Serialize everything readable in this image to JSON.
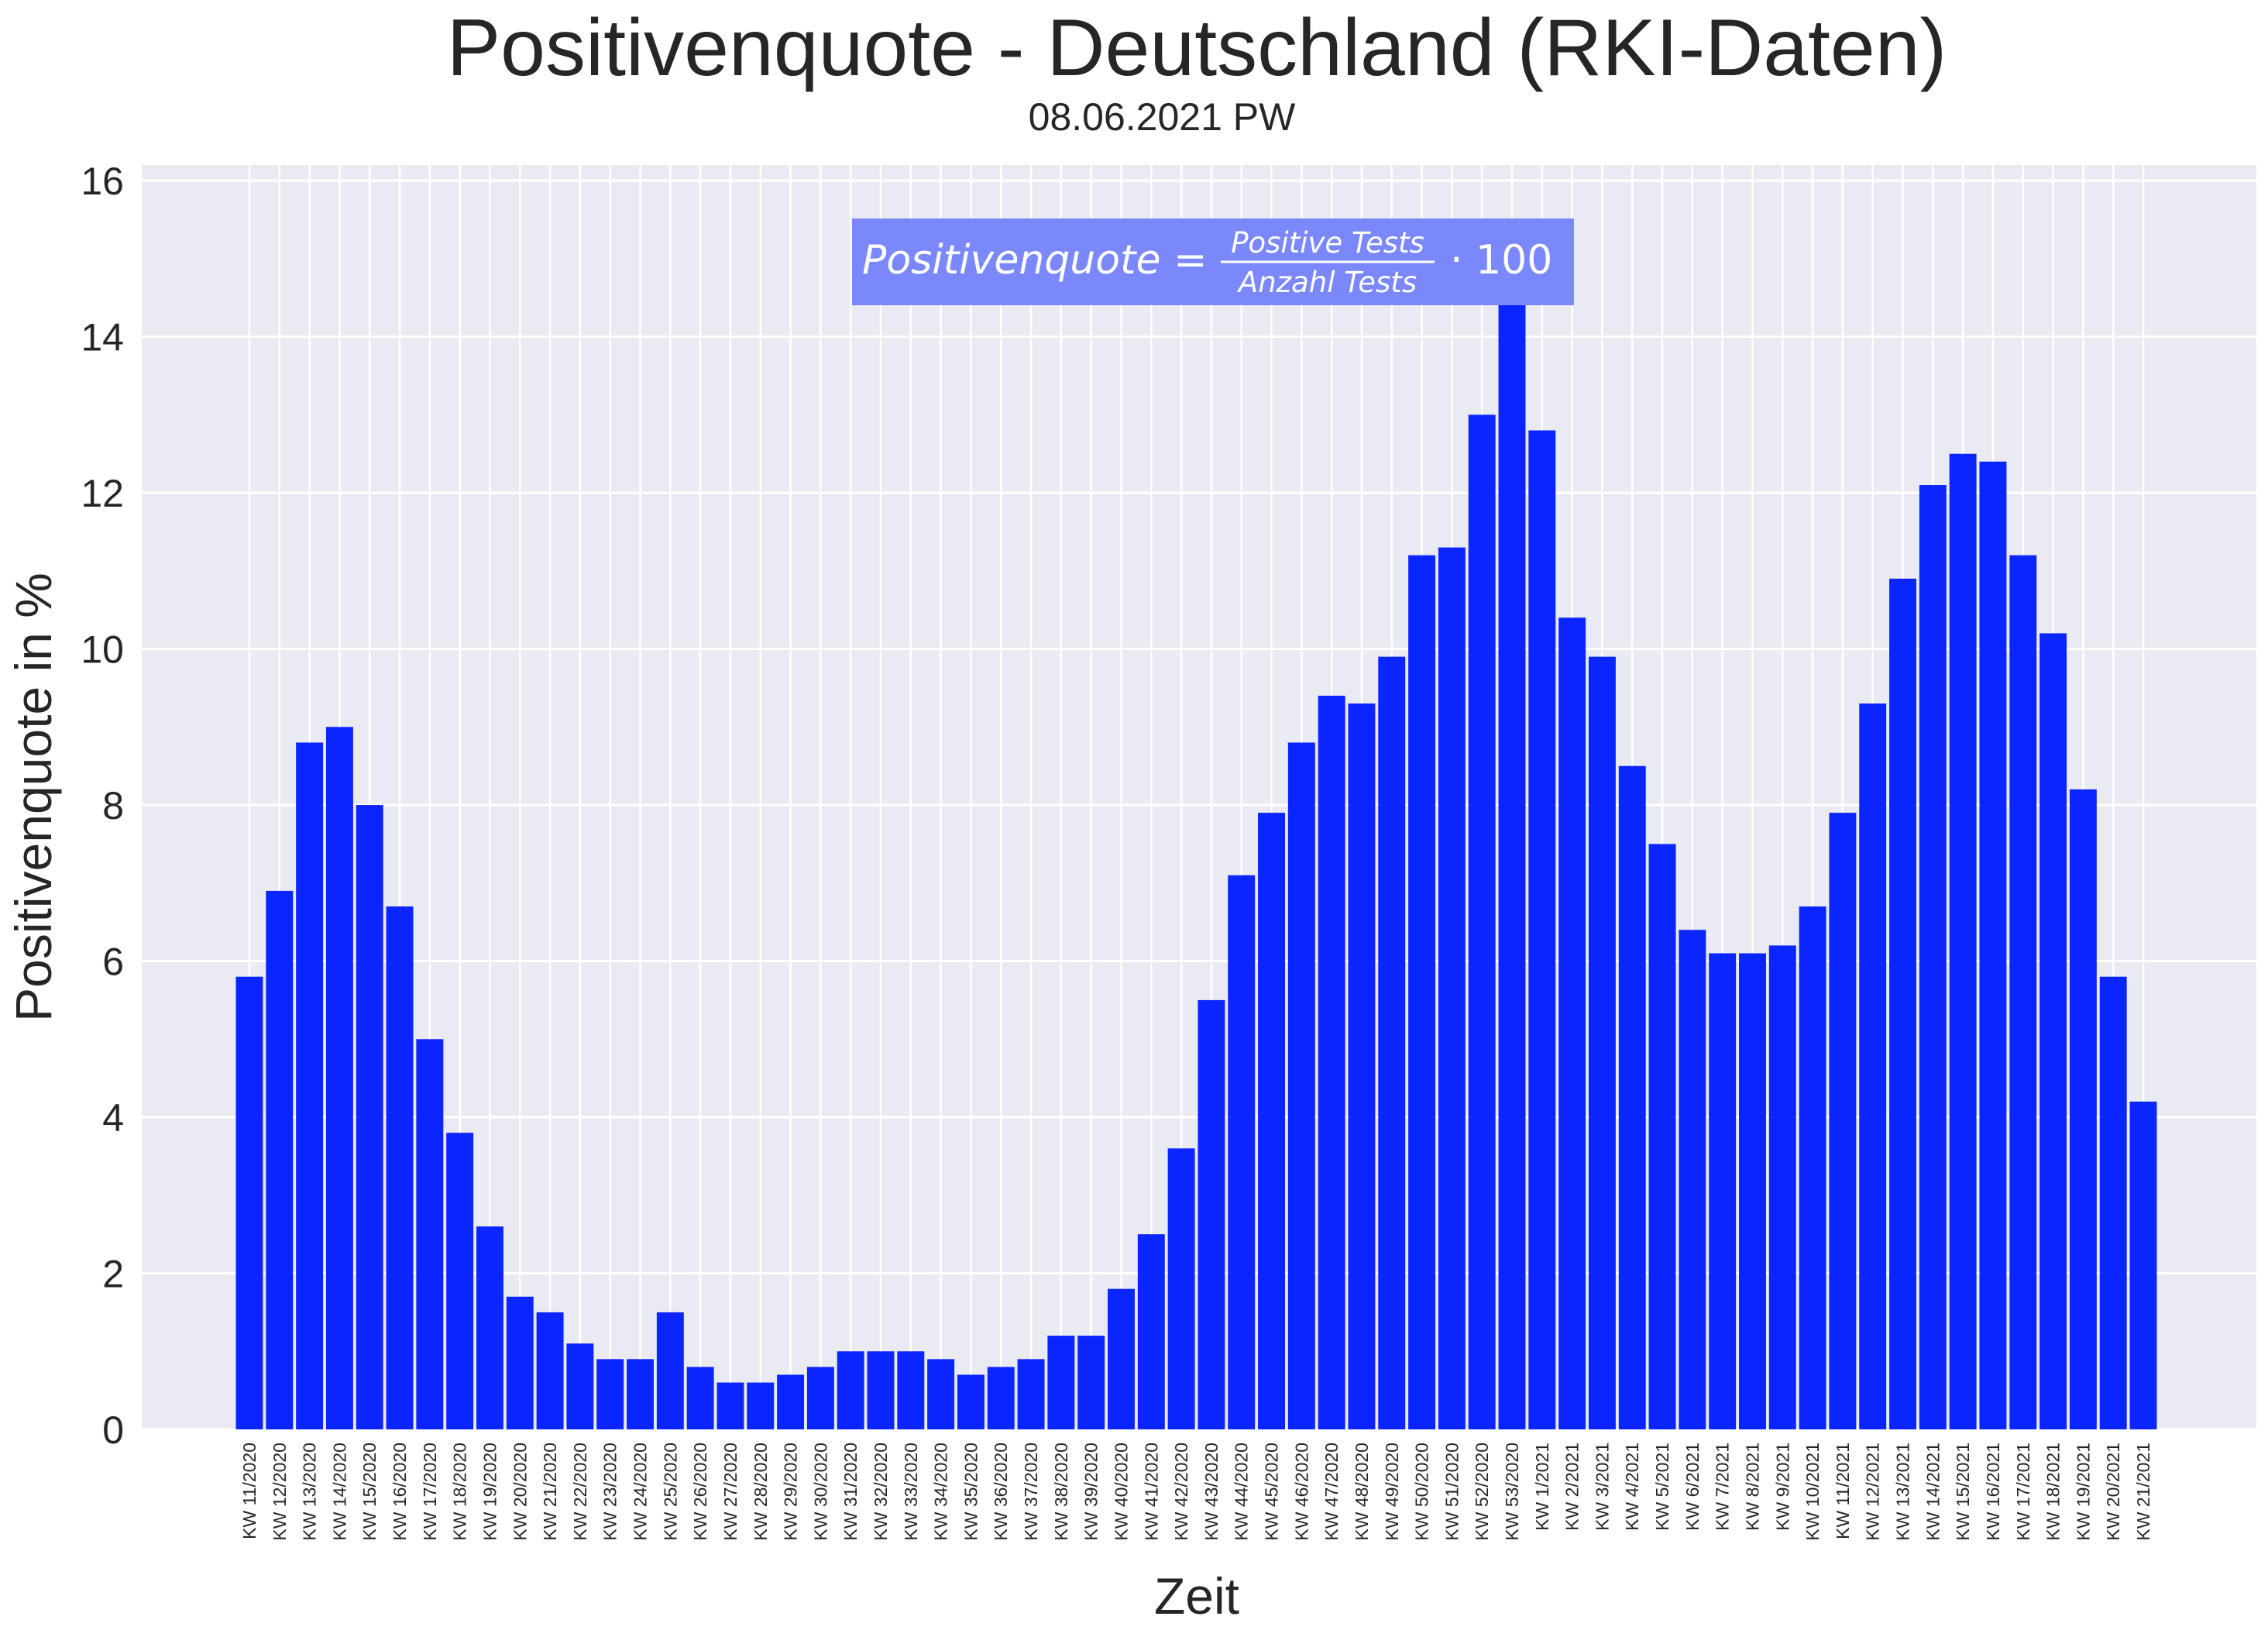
{
  "colors": {
    "bar": "#0a25ff",
    "plot_bg": "#eaeaf2",
    "grid": "#ffffff",
    "formula_box": "#7b88fb"
  },
  "chart_data": {
    "type": "bar",
    "title": "Positivenquote - Deutschland (RKI-Daten)",
    "subtitle": "08.06.2021 PW",
    "xlabel": "Zeit",
    "ylabel": "Positivenquote in %",
    "ylim": [
      0,
      16.2
    ],
    "yticks": [
      "0",
      "2",
      "4",
      "6",
      "8",
      "10",
      "12",
      "14",
      "16"
    ],
    "grid": true,
    "formula": {
      "lhs": "Positivenquote =",
      "numerator": "Positive Tests",
      "denominator": "Anzahl Tests",
      "rhs": "· 100"
    },
    "categories": [
      "KW 11/2020",
      "KW 12/2020",
      "KW 13/2020",
      "KW 14/2020",
      "KW 15/2020",
      "KW 16/2020",
      "KW 17/2020",
      "KW 18/2020",
      "KW 19/2020",
      "KW 20/2020",
      "KW 21/2020",
      "KW 22/2020",
      "KW 23/2020",
      "KW 24/2020",
      "KW 25/2020",
      "KW 26/2020",
      "KW 27/2020",
      "KW 28/2020",
      "KW 29/2020",
      "KW 30/2020",
      "KW 31/2020",
      "KW 32/2020",
      "KW 33/2020",
      "KW 34/2020",
      "KW 35/2020",
      "KW 36/2020",
      "KW 37/2020",
      "KW 38/2020",
      "KW 39/2020",
      "KW 40/2020",
      "KW 41/2020",
      "KW 42/2020",
      "KW 43/2020",
      "KW 44/2020",
      "KW 45/2020",
      "KW 46/2020",
      "KW 47/2020",
      "KW 48/2020",
      "KW 49/2020",
      "KW 50/2020",
      "KW 51/2020",
      "KW 52/2020",
      "KW 53/2020",
      "KW 1/2021",
      "KW 2/2021",
      "KW 3/2021",
      "KW 4/2021",
      "KW 5/2021",
      "KW 6/2021",
      "KW 7/2021",
      "KW 8/2021",
      "KW 9/2021",
      "KW 10/2021",
      "KW 11/2021",
      "KW 12/2021",
      "KW 13/2021",
      "KW 14/2021",
      "KW 15/2021",
      "KW 16/2021",
      "KW 17/2021",
      "KW 18/2021",
      "KW 19/2021",
      "KW 20/2021",
      "KW 21/2021"
    ],
    "values": [
      5.8,
      6.9,
      8.8,
      9.0,
      8.0,
      6.7,
      5.0,
      3.8,
      2.6,
      1.7,
      1.5,
      1.1,
      0.9,
      0.9,
      1.5,
      0.8,
      0.6,
      0.6,
      0.7,
      0.8,
      1.0,
      1.0,
      1.0,
      0.9,
      0.7,
      0.8,
      0.9,
      1.2,
      1.2,
      1.8,
      2.5,
      3.6,
      5.5,
      7.1,
      7.9,
      8.8,
      9.4,
      9.3,
      9.9,
      11.2,
      11.3,
      13.0,
      15.4,
      12.8,
      10.4,
      9.9,
      8.5,
      7.5,
      6.4,
      6.1,
      6.1,
      6.2,
      6.7,
      7.9,
      9.3,
      10.9,
      12.1,
      12.5,
      12.4,
      11.2,
      10.2,
      8.2,
      5.8,
      4.2
    ]
  }
}
